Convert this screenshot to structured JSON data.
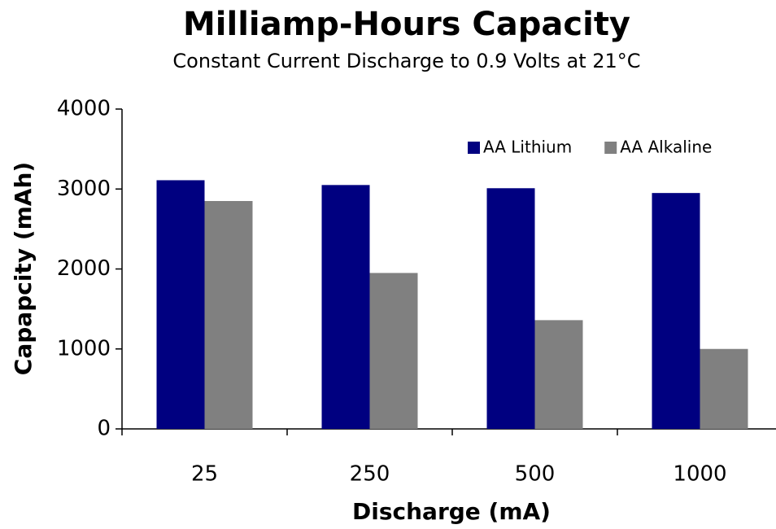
{
  "chart_data": {
    "type": "bar",
    "title": "Milliamp-Hours Capacity",
    "subtitle": "Constant Current Discharge to 0.9 Volts at 21°C",
    "x_label": "Discharge (mA)",
    "y_label": "Capapcity (mAh)",
    "categories": [
      "25",
      "250",
      "500",
      "1000"
    ],
    "series": [
      {
        "name": "AA Lithium",
        "color": "#000080",
        "values": [
          3110,
          3050,
          3010,
          2950
        ]
      },
      {
        "name": "AA Alkaline",
        "color": "#808080",
        "values": [
          2850,
          1950,
          1360,
          1000
        ]
      }
    ],
    "ylim": [
      0,
      4000
    ],
    "yticks": [
      0,
      1000,
      2000,
      3000,
      4000
    ],
    "grid": false,
    "legend": "top-right"
  }
}
